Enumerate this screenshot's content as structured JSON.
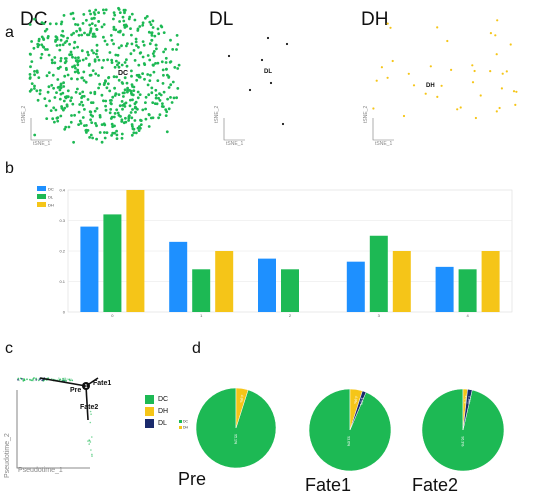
{
  "panels": {
    "a": {
      "letter": "a",
      "plots": [
        {
          "title": "DC",
          "center_label": "DC",
          "color": "#1db954",
          "point_count": 600
        },
        {
          "title": "DL",
          "center_label": "DL",
          "color": "#1a1a1a",
          "point_count": 7
        },
        {
          "title": "DH",
          "center_label": "DH",
          "color": "#f5c518",
          "point_count": 38
        }
      ],
      "axis_y": "tSNE_2",
      "axis_x": "tSNE_1"
    },
    "b": {
      "letter": "b"
    },
    "c": {
      "letter": "c",
      "labels": {
        "pre": "Pre",
        "fate1": "Fate1",
        "fate2": "Fate2",
        "node": "1"
      },
      "axis_y": "Pseudotime_2",
      "axis_x": "Pseudotime_1",
      "legend": [
        {
          "label": "DC",
          "color": "#1db954"
        },
        {
          "label": "DH",
          "color": "#f5c518"
        },
        {
          "label": "DL",
          "color": "#1a2a6c"
        }
      ]
    },
    "d": {
      "letter": "d"
    }
  },
  "chart_data": [
    {
      "type": "bar",
      "categories": [
        "0",
        "1",
        "2",
        "3",
        "4"
      ],
      "series": [
        {
          "name": "DC",
          "color": "#1e90ff",
          "values": [
            0.28,
            0.23,
            0.175,
            0.165,
            0.148
          ]
        },
        {
          "name": "DL",
          "color": "#1db954",
          "values": [
            0.32,
            0.14,
            0.14,
            0.25,
            0.14
          ]
        },
        {
          "name": "DH",
          "color": "#f5c518",
          "values": [
            0.4,
            0.2,
            0.0,
            0.2,
            0.2
          ]
        }
      ],
      "ylim": [
        0,
        0.4
      ],
      "yticks": [
        "0",
        "0.1",
        "0.2",
        "0.3",
        "0.4"
      ],
      "legend_position": "top-left",
      "grid": true
    },
    {
      "type": "pie",
      "title": "Pre",
      "slices": [
        {
          "label": "DC",
          "value": 95.1,
          "text": "95.1%",
          "color": "#1db954"
        },
        {
          "label": "DH",
          "value": 4.9,
          "text": "4.9%",
          "color": "#f5c518"
        }
      ]
    },
    {
      "type": "pie",
      "title": "Fate1",
      "slices": [
        {
          "label": "DC",
          "value": 93.6,
          "text": "93.6%",
          "color": "#1db954"
        },
        {
          "label": "DH",
          "value": 4.9,
          "text": "4.9%",
          "color": "#f5c518"
        },
        {
          "label": "DL",
          "value": 1.5,
          "text": "1.5%",
          "color": "#1a2a6c"
        }
      ]
    },
    {
      "type": "pie",
      "title": "Fate2",
      "slices": [
        {
          "label": "DC",
          "value": 96.3,
          "text": "96.3%",
          "color": "#1db954"
        },
        {
          "label": "DH",
          "value": 1.8,
          "text": "1.8%",
          "color": "#f5c518"
        },
        {
          "label": "DL",
          "value": 1.8,
          "text": "1.8%",
          "color": "#1a2a6c"
        }
      ]
    }
  ]
}
